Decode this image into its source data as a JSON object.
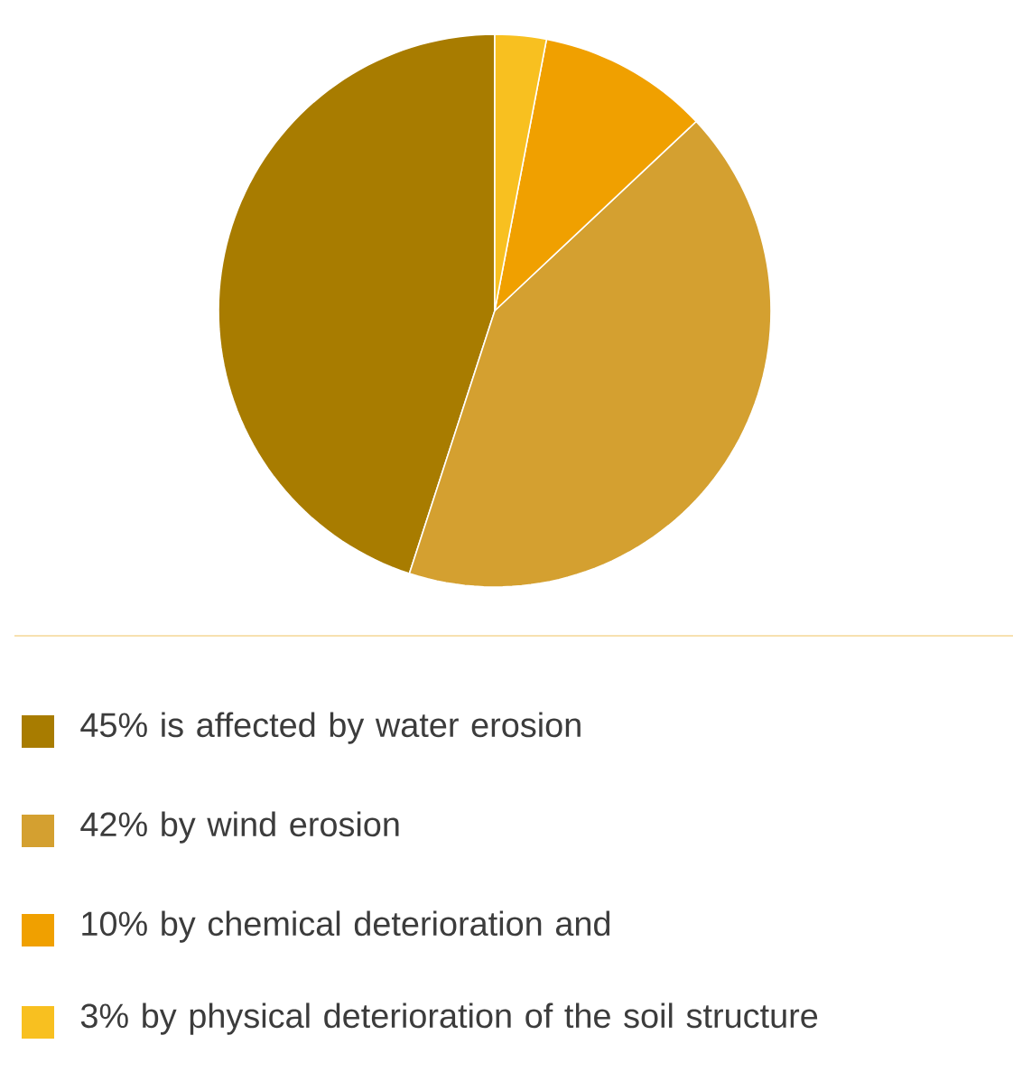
{
  "chart_data": {
    "type": "pie",
    "categories": [
      "45% is affected by water erosion",
      "42% by wind erosion",
      "10% by chemical deterioration and",
      "3% by physical deterioration of the soil structure"
    ],
    "values": [
      45,
      42,
      10,
      3
    ],
    "colors": [
      "#a87c00",
      "#d4a030",
      "#f0a000",
      "#f8c020"
    ],
    "legend": "bottom"
  }
}
